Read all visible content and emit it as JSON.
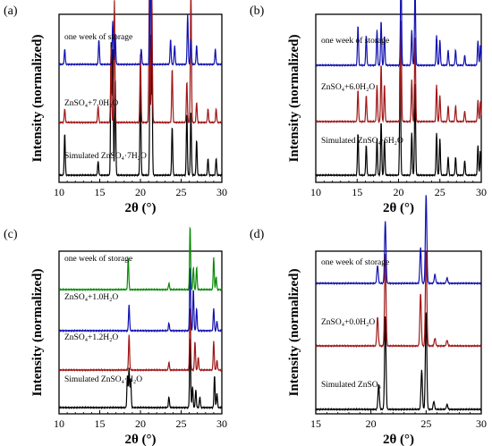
{
  "panels": [
    {
      "letter": "(a)",
      "title": "",
      "xlabel": "2θ (°)",
      "ylabel": "Intensity (normalized)",
      "xlim": [
        10,
        30
      ],
      "xticks": [
        "10",
        "15",
        "20",
        "25",
        "30"
      ],
      "traces": [
        {
          "label": "Simulated ZnSO₄·7H₂O",
          "color": "#000000",
          "peaks": [
            [
              10.7,
              0.3
            ],
            [
              14.8,
              0.1
            ],
            [
              16.4,
              0.95
            ],
            [
              16.6,
              0.9
            ],
            [
              16.9,
              0.7
            ],
            [
              20.0,
              0.65
            ],
            [
              21.2,
              1.0
            ],
            [
              21.4,
              0.9
            ],
            [
              23.9,
              0.35
            ],
            [
              25.7,
              0.45
            ],
            [
              26.2,
              0.45
            ],
            [
              26.9,
              0.25
            ],
            [
              28.3,
              0.12
            ],
            [
              29.3,
              0.12
            ]
          ]
        },
        {
          "label": "ZnSO₄+7.0H₂O",
          "color": "#a01818",
          "peaks": [
            [
              10.7,
              0.1
            ],
            [
              14.8,
              0.12
            ],
            [
              16.4,
              0.55
            ],
            [
              16.8,
              0.9
            ],
            [
              20.0,
              0.5
            ],
            [
              21.1,
              1.0
            ],
            [
              21.4,
              0.95
            ],
            [
              23.9,
              0.4
            ],
            [
              25.7,
              0.3
            ],
            [
              26.2,
              1.0
            ],
            [
              26.9,
              0.15
            ],
            [
              28.3,
              0.1
            ],
            [
              29.3,
              0.1
            ]
          ]
        },
        {
          "label": "one week of storage",
          "color": "#1212b0",
          "peaks": [
            [
              10.7,
              0.12
            ],
            [
              14.9,
              0.2
            ],
            [
              16.6,
              0.35
            ],
            [
              16.9,
              0.25
            ],
            [
              20.1,
              0.12
            ],
            [
              21.2,
              1.0
            ],
            [
              23.7,
              0.2
            ],
            [
              24.2,
              0.15
            ],
            [
              25.8,
              0.4
            ],
            [
              26.2,
              0.2
            ],
            [
              26.9,
              0.15
            ],
            [
              29.2,
              0.12
            ]
          ]
        }
      ]
    },
    {
      "letter": "(b)",
      "title": "",
      "xlabel": "2θ (°)",
      "ylabel": "Intensity (normalized)",
      "xlim": [
        10,
        30
      ],
      "xticks": [
        "10",
        "15",
        "20",
        "25",
        "30"
      ],
      "traces": [
        {
          "label": "Simulated ZnSO₄·6H₂O",
          "color": "#000000",
          "peaks": [
            [
              15.1,
              0.35
            ],
            [
              16.1,
              0.25
            ],
            [
              17.4,
              0.3
            ],
            [
              17.9,
              0.45
            ],
            [
              18.3,
              0.3
            ],
            [
              20.2,
              1.0
            ],
            [
              21.6,
              0.35
            ],
            [
              22.0,
              0.75
            ],
            [
              24.6,
              0.35
            ],
            [
              25.0,
              0.3
            ],
            [
              26.0,
              0.15
            ],
            [
              26.9,
              0.15
            ],
            [
              28.0,
              0.12
            ],
            [
              29.6,
              0.25
            ],
            [
              29.9,
              0.2
            ]
          ]
        },
        {
          "label": "ZnSO₄+6.0H₂O",
          "color": "#a01818",
          "peaks": [
            [
              15.1,
              0.3
            ],
            [
              16.1,
              0.25
            ],
            [
              17.4,
              0.35
            ],
            [
              17.9,
              0.55
            ],
            [
              18.3,
              0.35
            ],
            [
              20.3,
              1.0
            ],
            [
              21.6,
              0.4
            ],
            [
              22.0,
              0.8
            ],
            [
              24.6,
              0.35
            ],
            [
              25.0,
              0.25
            ],
            [
              26.0,
              0.15
            ],
            [
              26.9,
              0.15
            ],
            [
              28.0,
              0.1
            ],
            [
              29.6,
              0.2
            ],
            [
              29.9,
              0.2
            ]
          ]
        },
        {
          "label": "one week of storage",
          "color": "#1212b0",
          "peaks": [
            [
              15.1,
              0.4
            ],
            [
              16.1,
              0.3
            ],
            [
              17.4,
              0.35
            ],
            [
              17.9,
              0.45
            ],
            [
              18.3,
              0.3
            ],
            [
              20.3,
              1.0
            ],
            [
              21.6,
              0.35
            ],
            [
              22.0,
              0.8
            ],
            [
              24.6,
              0.3
            ],
            [
              25.0,
              0.25
            ],
            [
              26.0,
              0.15
            ],
            [
              26.9,
              0.15
            ],
            [
              28.0,
              0.1
            ],
            [
              29.6,
              0.25
            ],
            [
              29.9,
              0.2
            ]
          ]
        }
      ]
    },
    {
      "letter": "(c)",
      "title": "",
      "xlabel": "2θ (°)",
      "ylabel": "Intensity (normalized)",
      "xlim": [
        10,
        30
      ],
      "xticks": [
        "10",
        "15",
        "20",
        "25",
        "30"
      ],
      "traces": [
        {
          "label": "Simulated ZnSO₄·H₂O",
          "color": "#000000",
          "peaks": [
            [
              18.4,
              0.45
            ],
            [
              18.6,
              0.55
            ],
            [
              18.8,
              0.4
            ],
            [
              23.5,
              0.15
            ],
            [
              26.1,
              1.0
            ],
            [
              26.4,
              0.3
            ],
            [
              26.8,
              0.25
            ],
            [
              27.3,
              0.15
            ],
            [
              29.1,
              0.45
            ],
            [
              29.4,
              0.2
            ]
          ]
        },
        {
          "label": "ZnSO₄+1.2H₂O",
          "color": "#a01818",
          "peaks": [
            [
              18.6,
              0.55
            ],
            [
              23.5,
              0.12
            ],
            [
              26.1,
              1.0
            ],
            [
              26.7,
              0.45
            ],
            [
              27.1,
              0.2
            ],
            [
              29.0,
              0.45
            ],
            [
              29.4,
              0.15
            ]
          ]
        },
        {
          "label": "ZnSO₄+1.0H₂O",
          "color": "#1212b0",
          "peaks": [
            [
              18.6,
              0.4
            ],
            [
              23.5,
              0.12
            ],
            [
              26.1,
              1.0
            ],
            [
              26.5,
              0.65
            ],
            [
              26.9,
              0.35
            ],
            [
              29.0,
              0.35
            ],
            [
              29.4,
              0.15
            ]
          ]
        },
        {
          "label": "one week of storage",
          "color": "#0a8a0a",
          "peaks": [
            [
              18.5,
              0.5
            ],
            [
              23.5,
              0.1
            ],
            [
              26.1,
              1.0
            ],
            [
              26.5,
              0.35
            ],
            [
              26.9,
              0.35
            ],
            [
              29.0,
              0.5
            ],
            [
              29.3,
              0.2
            ]
          ]
        }
      ]
    },
    {
      "letter": "(d)",
      "title": "",
      "xlabel": "2θ (°)",
      "ylabel": "Intensity (normalized)",
      "xlim": [
        15,
        30
      ],
      "xticks": [
        "15",
        "20",
        "25",
        "30"
      ],
      "traces": [
        {
          "label": "Simulated ZnSO₄",
          "color": "#000000",
          "peaks": [
            [
              20.7,
              0.25
            ],
            [
              21.3,
              0.95
            ],
            [
              24.6,
              0.4
            ],
            [
              25.0,
              1.0
            ],
            [
              25.7,
              0.08
            ],
            [
              26.9,
              0.05
            ]
          ]
        },
        {
          "label": "ZnSO₄+0.0H₂O",
          "color": "#a01818",
          "peaks": [
            [
              20.6,
              0.3
            ],
            [
              21.3,
              0.95
            ],
            [
              24.5,
              0.55
            ],
            [
              25.0,
              1.0
            ],
            [
              25.8,
              0.08
            ],
            [
              26.9,
              0.06
            ]
          ]
        },
        {
          "label": "one week of storage",
          "color": "#1212b0",
          "peaks": [
            [
              20.6,
              0.2
            ],
            [
              21.3,
              0.7
            ],
            [
              24.5,
              0.4
            ],
            [
              25.0,
              1.0
            ],
            [
              25.8,
              0.1
            ],
            [
              26.9,
              0.06
            ]
          ]
        }
      ]
    }
  ]
}
